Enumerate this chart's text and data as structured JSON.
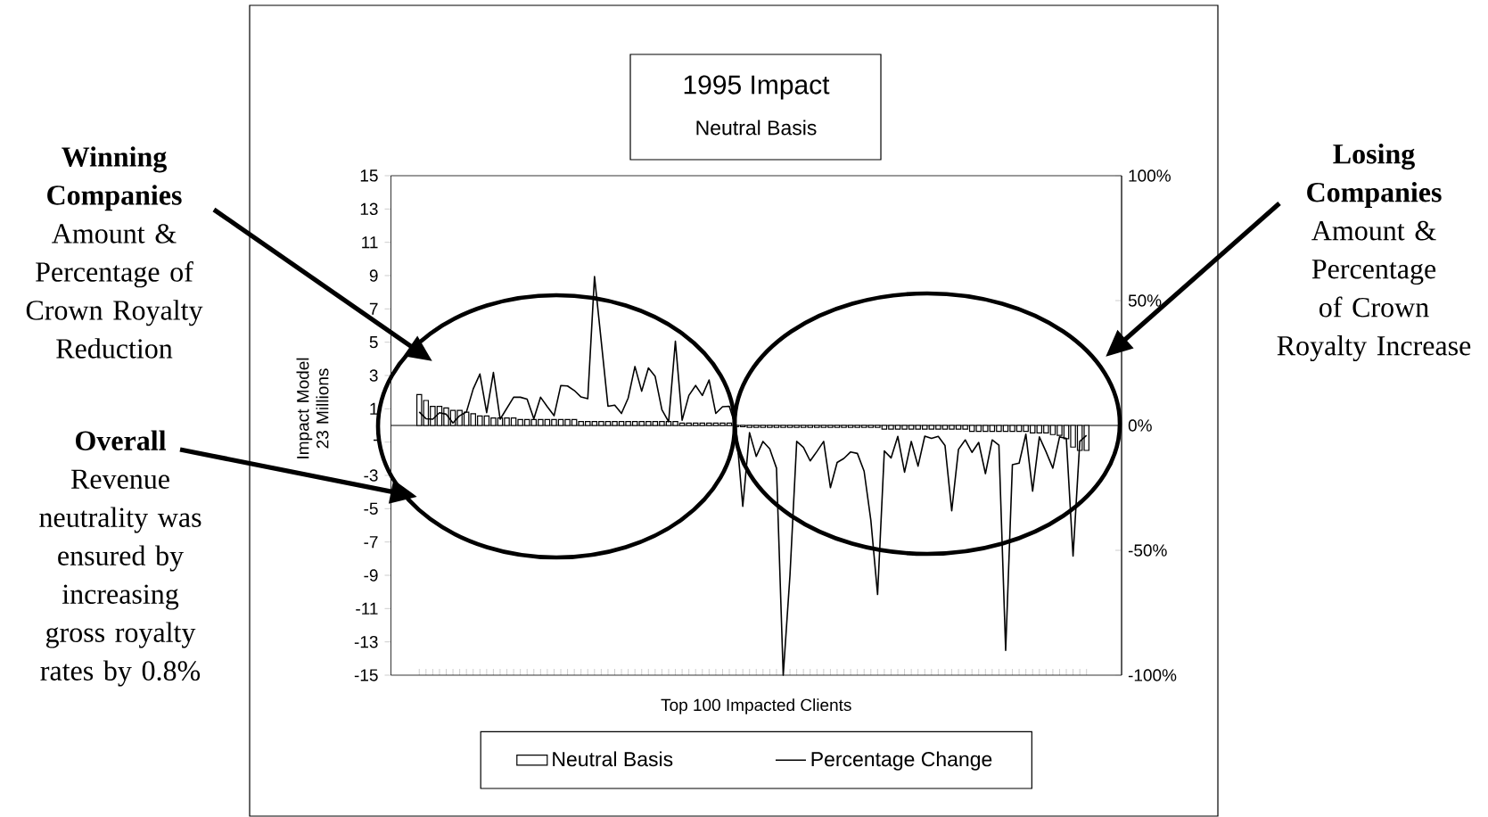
{
  "chart_data": {
    "type": "bar",
    "title": "1995 Impact",
    "subtitle": "Neutral Basis",
    "xlabel": "Top 100 Impacted Clients",
    "ylabel": "Impact Model 23 Millions",
    "categories": [
      null,
      null,
      null,
      null,
      null,
      null,
      null,
      null,
      null,
      null,
      null,
      null,
      null,
      null,
      null,
      null,
      null,
      null,
      null,
      null,
      null,
      null,
      null,
      null,
      null,
      null,
      null,
      null,
      null,
      null,
      null,
      null,
      null,
      null,
      null,
      null,
      null,
      null,
      null,
      null,
      null,
      null,
      null,
      null,
      null,
      null,
      null,
      null,
      null,
      null,
      null,
      null,
      null,
      null,
      null,
      null,
      null,
      null,
      null,
      null,
      null,
      null,
      null,
      null,
      null,
      null,
      null,
      null,
      null,
      null,
      null,
      null,
      null,
      null,
      null,
      null,
      null,
      null,
      null,
      null,
      null,
      null,
      null,
      null,
      null,
      null,
      null,
      null,
      null,
      null,
      null,
      null,
      null,
      null,
      null,
      null,
      null,
      null,
      null,
      null
    ],
    "series": [
      {
        "name": "Neutral Basis",
        "color": "#ffffff",
        "values": [
          1.85,
          1.5,
          1.15,
          1.15,
          1.05,
          0.9,
          0.9,
          0.8,
          0.7,
          0.57,
          0.57,
          0.45,
          0.45,
          0.45,
          0.45,
          0.35,
          0.35,
          0.35,
          0.35,
          0.35,
          0.35,
          0.35,
          0.35,
          0.35,
          0.23,
          0.23,
          0.23,
          0.23,
          0.23,
          0.23,
          0.23,
          0.23,
          0.23,
          0.23,
          0.23,
          0.23,
          0.23,
          0.23,
          0.23,
          0.14,
          0.14,
          0.14,
          0.14,
          0.14,
          0.14,
          0.14,
          0.14,
          -0.08,
          -0.08,
          -0.12,
          -0.12,
          -0.12,
          -0.12,
          -0.12,
          -0.12,
          -0.12,
          -0.12,
          -0.12,
          -0.12,
          -0.12,
          -0.12,
          -0.12,
          -0.12,
          -0.12,
          -0.12,
          -0.12,
          -0.12,
          -0.12,
          -0.12,
          -0.22,
          -0.22,
          -0.22,
          -0.22,
          -0.22,
          -0.22,
          -0.22,
          -0.22,
          -0.22,
          -0.22,
          -0.22,
          -0.22,
          -0.22,
          -0.36,
          -0.36,
          -0.36,
          -0.36,
          -0.36,
          -0.36,
          -0.36,
          -0.36,
          -0.36,
          -0.45,
          -0.45,
          -0.45,
          -0.55,
          -0.6,
          -0.8,
          -1.3,
          -1.5,
          -1.5
        ]
      },
      {
        "name": "Percentage Change",
        "type": "line",
        "axis": "y2",
        "color": "#000000",
        "values": [
          5.4,
          2.7,
          2.5,
          5.1,
          4.5,
          1,
          3.9,
          5.4,
          14.6,
          20.6,
          5.1,
          21.2,
          2.5,
          6.9,
          11.3,
          11.3,
          10.5,
          2.7,
          11.3,
          7.5,
          3.9,
          16,
          15.8,
          14,
          11.4,
          10.7,
          59.6,
          33.7,
          7.7,
          8.1,
          4.8,
          11,
          23.6,
          13.7,
          23,
          19.6,
          6.3,
          1.5,
          33.7,
          2.1,
          12,
          16,
          12,
          18.2,
          4.8,
          7.5,
          7.7,
          -1,
          -32.4,
          -2.9,
          -12.4,
          -6.4,
          -9.4,
          -17.1,
          -100,
          -60,
          -6.4,
          -8.8,
          -14.2,
          -10.4,
          -6.4,
          -24.9,
          -14.8,
          -13.2,
          -10.6,
          -11.2,
          -18.3,
          -38,
          -67.7,
          -10.2,
          -13,
          -4.4,
          -18.7,
          -6.4,
          -16.3,
          -4.3,
          -5.2,
          -4.4,
          -8,
          -34.2,
          -9.6,
          -5.8,
          -10.8,
          -6.8,
          -19.3,
          -5.8,
          -7.9,
          -90.1,
          -15.7,
          -15.1,
          -3.5,
          -26.3,
          -4.6,
          -10.6,
          -17.1,
          -4.6,
          -5.2,
          -52.3,
          -6.4,
          -4
        ]
      }
    ],
    "ylim": [
      -15,
      15
    ],
    "yticks": [
      15,
      13,
      11,
      9,
      7,
      5,
      3,
      1,
      {
        "value": -1,
        "label": "-"
      },
      -3,
      -5,
      -7,
      -9,
      -11,
      -13,
      -15
    ],
    "y2lim": [
      -100,
      100
    ],
    "y2ticks": [
      {
        "value": 100,
        "label": "100%"
      },
      {
        "value": 50,
        "label": "50%"
      },
      {
        "value": 0,
        "label": "0%"
      },
      {
        "value": -50,
        "label": "-50%"
      },
      {
        "value": -100,
        "label": "-100%"
      }
    ],
    "legend": "bottom",
    "annotations": [
      "**Winning Companies** Amount & Percentage of Crown Royalty Reduction",
      "**Overall** Revenue neutrality was ensured by increasing gross royalty rates by 0.8%",
      "**Losing Companies** Amount & Percentage of Crown Royalty Increase"
    ]
  }
}
